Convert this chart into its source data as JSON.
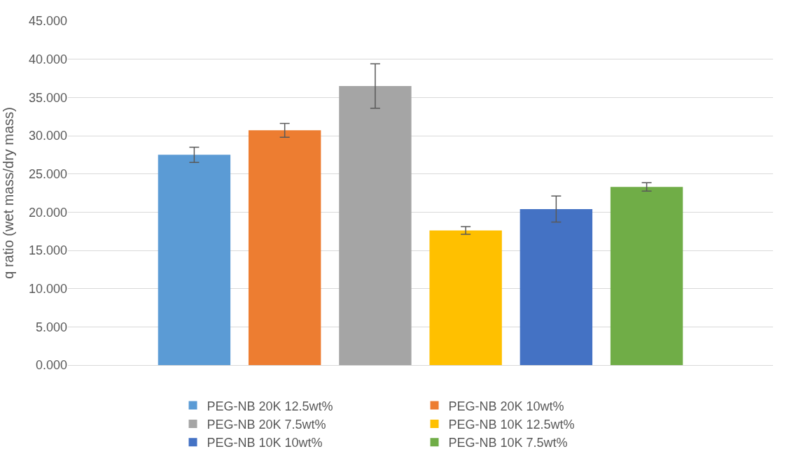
{
  "chart_data": {
    "type": "bar",
    "ylabel": "q ratio (wet mass/dry mass)",
    "categories": [
      null
    ],
    "series": [
      {
        "name": "PEG-NB 20K 12.5wt%",
        "color": "#5b9bd5",
        "values": [
          27.5
        ],
        "errors": [
          1.0
        ]
      },
      {
        "name": "PEG-NB 20K 10wt%",
        "color": "#ed7d31",
        "values": [
          30.7
        ],
        "errors": [
          0.9
        ]
      },
      {
        "name": "PEG-NB 20K 7.5wt%",
        "color": "#a5a5a5",
        "values": [
          36.5
        ],
        "errors": [
          2.9
        ]
      },
      {
        "name": "PEG-NB 10K 12.5wt%",
        "color": "#ffc000",
        "values": [
          17.6
        ],
        "errors": [
          0.5
        ]
      },
      {
        "name": "PEG-NB 10K 10wt%",
        "color": "#4472c4",
        "values": [
          20.4
        ],
        "errors": [
          1.7
        ]
      },
      {
        "name": "PEG-NB 10K 7.5wt%",
        "color": "#70ad47",
        "values": [
          23.3
        ],
        "errors": [
          0.55
        ]
      }
    ],
    "ylim": [
      0,
      45
    ],
    "yticks": [
      {
        "value": 0,
        "label": "0.000"
      },
      {
        "value": 5,
        "label": "5.000"
      },
      {
        "value": 10,
        "label": "10.000"
      },
      {
        "value": 15,
        "label": "15.000"
      },
      {
        "value": 20,
        "label": "20.000"
      },
      {
        "value": 25,
        "label": "25.000"
      },
      {
        "value": 30,
        "label": "30.000"
      },
      {
        "value": 35,
        "label": "35.000"
      },
      {
        "value": 40,
        "label": "40.000"
      },
      {
        "value": 45,
        "label": "45.000"
      }
    ],
    "grid": "y",
    "legend": "bottom"
  }
}
